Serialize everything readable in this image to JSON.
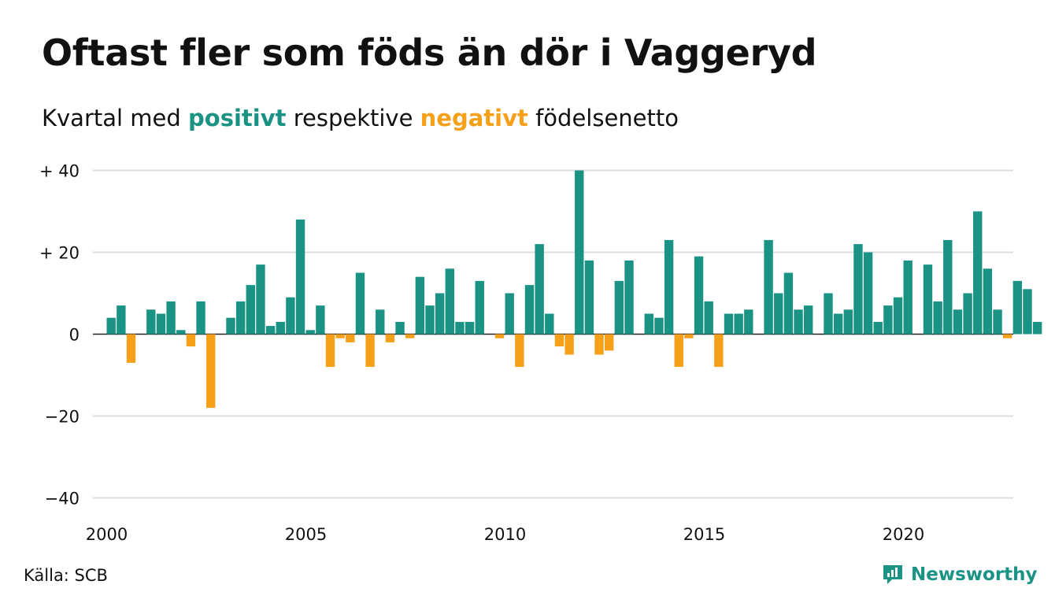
{
  "title": "Oftast fler som föds än dör i Vaggeryd",
  "subtitle": {
    "prefix": "Kvartal med ",
    "positive": "positivt",
    "middle": " respektive ",
    "negative": "negativt",
    "suffix": " födelsenetto"
  },
  "source": "Källa: SCB",
  "brand": {
    "name": "Newsworthy",
    "icon": "newsworthy-logo-icon"
  },
  "colors": {
    "positive": "#1a9385",
    "negative": "#f6a01a",
    "grid": "#dddddd",
    "text": "#111111"
  },
  "chart_data": {
    "type": "bar",
    "title": "Oftast fler som föds än dör i Vaggeryd",
    "subtitle": "Kvartal med positivt respektive negativt födelsenetto",
    "x_unit": "quarter",
    "x_start": "2000 Q1",
    "xlim": [
      2000,
      2023
    ],
    "ylim": [
      -40,
      40
    ],
    "y_ticks": [
      {
        "value": 40,
        "label": "+ 40"
      },
      {
        "value": 20,
        "label": "+ 20"
      },
      {
        "value": 0,
        "label": "0"
      },
      {
        "value": -20,
        "label": "−20"
      },
      {
        "value": -40,
        "label": "−40"
      }
    ],
    "x_ticks": [
      {
        "value": 2000,
        "label": "2000"
      },
      {
        "value": 2005,
        "label": "2005"
      },
      {
        "value": 2010,
        "label": "2010"
      },
      {
        "value": 2015,
        "label": "2015"
      },
      {
        "value": 2020,
        "label": "2020"
      }
    ],
    "grid": true,
    "values": [
      4,
      7,
      -7,
      0,
      6,
      5,
      8,
      1,
      -3,
      8,
      -18,
      0,
      4,
      8,
      12,
      17,
      2,
      3,
      9,
      28,
      1,
      7,
      -8,
      -1,
      -2,
      15,
      -8,
      6,
      -2,
      3,
      -1,
      14,
      7,
      10,
      16,
      3,
      3,
      13,
      0,
      -1,
      10,
      -8,
      12,
      22,
      5,
      -3,
      -5,
      40,
      18,
      -5,
      -4,
      13,
      18,
      0,
      5,
      4,
      23,
      -8,
      -1,
      19,
      8,
      -8,
      5,
      5,
      6,
      0,
      23,
      10,
      15,
      6,
      7,
      0,
      10,
      5,
      6,
      22,
      20,
      3,
      7,
      9,
      18,
      0,
      17,
      8,
      23,
      6,
      10,
      30,
      16,
      6,
      -1,
      13,
      11,
      3
    ]
  }
}
